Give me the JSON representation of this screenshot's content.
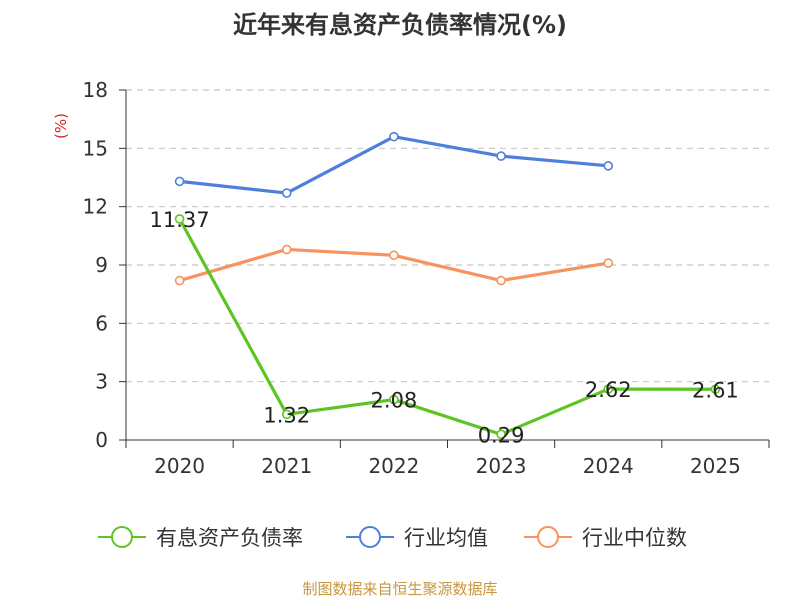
{
  "chart_data": {
    "type": "line",
    "title": "近年来有息资产负债率情况(%)",
    "ylabel": "(%)",
    "xlabel": "",
    "categories": [
      "2020",
      "2021",
      "2022",
      "2023",
      "2024",
      "2025"
    ],
    "ylim": [
      0,
      18
    ],
    "yticks": [
      "0",
      "3",
      "6",
      "9",
      "12",
      "15",
      "18"
    ],
    "grid": true,
    "legend_position": "bottom",
    "series": [
      {
        "name": "有息资产负债率",
        "color": "#5cc524",
        "values": [
          11.37,
          1.32,
          2.08,
          0.29,
          2.62,
          2.61
        ],
        "labels": [
          "11.37",
          "1.32",
          "2.08",
          "0.29",
          "2.62",
          "2.61"
        ]
      },
      {
        "name": "行业均值",
        "color": "#4e7fdc",
        "values": [
          13.3,
          12.7,
          15.6,
          14.6,
          14.1,
          null
        ]
      },
      {
        "name": "行业中位数",
        "color": "#f6935f",
        "values": [
          8.2,
          9.8,
          9.5,
          8.2,
          9.1,
          null
        ]
      }
    ]
  },
  "source": "制图数据来自恒生聚源数据库",
  "colors": {
    "axis": "#333333",
    "grid": "#c8c8c8",
    "unit": "#dd2222",
    "source": "#c8963c"
  }
}
